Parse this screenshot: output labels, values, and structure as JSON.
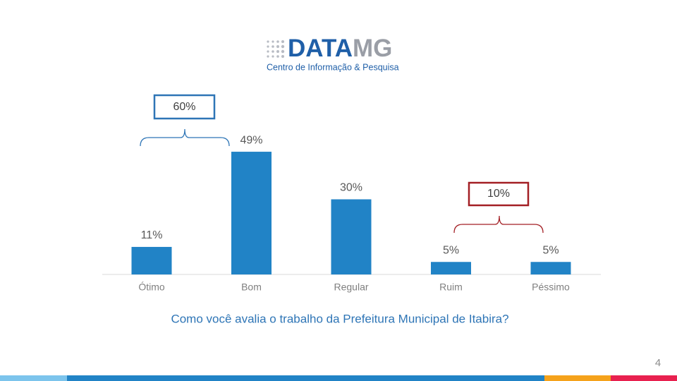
{
  "logo": {
    "brand_a": "DATA",
    "brand_b": "MG",
    "tagline": "Centro de Informação & Pesquisa"
  },
  "chart_data": {
    "type": "bar",
    "categories": [
      "Ótimo",
      "Bom",
      "Regular",
      "Ruim",
      "Péssimo"
    ],
    "values": [
      11,
      49,
      30,
      5,
      5
    ],
    "value_labels": [
      "11%",
      "49%",
      "30%",
      "5%",
      "5%"
    ],
    "color": "#2183c6",
    "annotations": [
      "60%",
      "10%"
    ],
    "xlabel": "Como você avalia o trabalho da Prefeitura Municipal de Itabira?"
  },
  "page_number": "4"
}
